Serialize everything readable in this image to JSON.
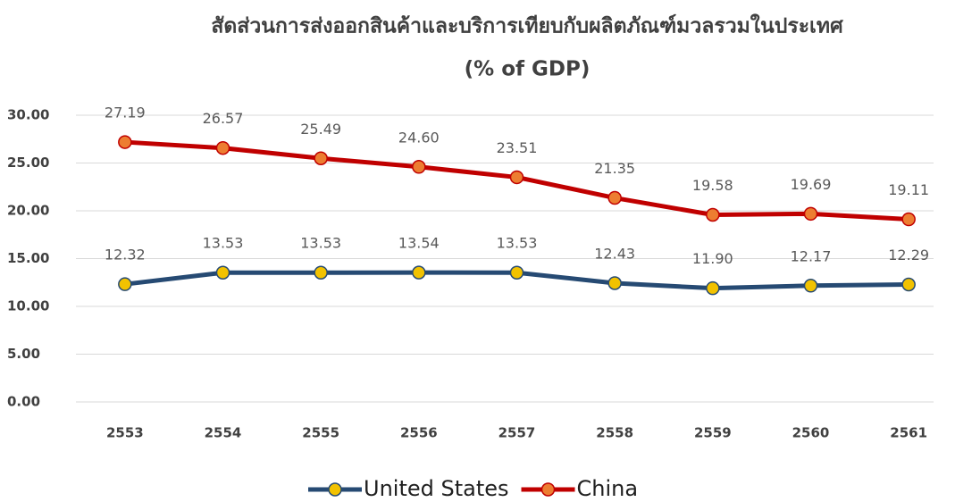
{
  "chart_data": {
    "type": "line",
    "title": "สัดส่วนการส่งออกสินค้าและบริการเทียบกับผลิตภัณฑ์มวลรวมในประเทศ",
    "subtitle": "(% of GDP)",
    "categories": [
      "2553",
      "2554",
      "2555",
      "2556",
      "2557",
      "2558",
      "2559",
      "2560",
      "2561"
    ],
    "series": [
      {
        "name": "United States",
        "color": "#264a73",
        "marker_color": "#f2c200",
        "values": [
          12.32,
          13.53,
          13.53,
          13.54,
          13.53,
          12.43,
          11.9,
          12.17,
          12.29
        ],
        "value_labels": [
          "12.32",
          "13.53",
          "13.53",
          "13.54",
          "13.53",
          "12.43",
          "11.90",
          "12.17",
          "12.29"
        ]
      },
      {
        "name": "China",
        "color": "#c00000",
        "marker_color": "#ed7d31",
        "values": [
          27.19,
          26.57,
          25.49,
          24.6,
          23.51,
          21.35,
          19.58,
          19.69,
          19.11
        ],
        "value_labels": [
          "27.19",
          "26.57",
          "25.49",
          "24.60",
          "23.51",
          "21.35",
          "19.58",
          "19.69",
          "19.11"
        ]
      }
    ],
    "ylim": [
      0,
      30
    ],
    "yticks": [
      {
        "value": 0,
        "label": "0.00"
      },
      {
        "value": 5,
        "label": "5.00"
      },
      {
        "value": 10,
        "label": "10.00"
      },
      {
        "value": 15,
        "label": "15.00"
      },
      {
        "value": 20,
        "label": "20.00"
      },
      {
        "value": 25,
        "label": "25.00"
      },
      {
        "value": 30,
        "label": "30.00"
      }
    ],
    "grid": true,
    "legend": "bottom"
  }
}
